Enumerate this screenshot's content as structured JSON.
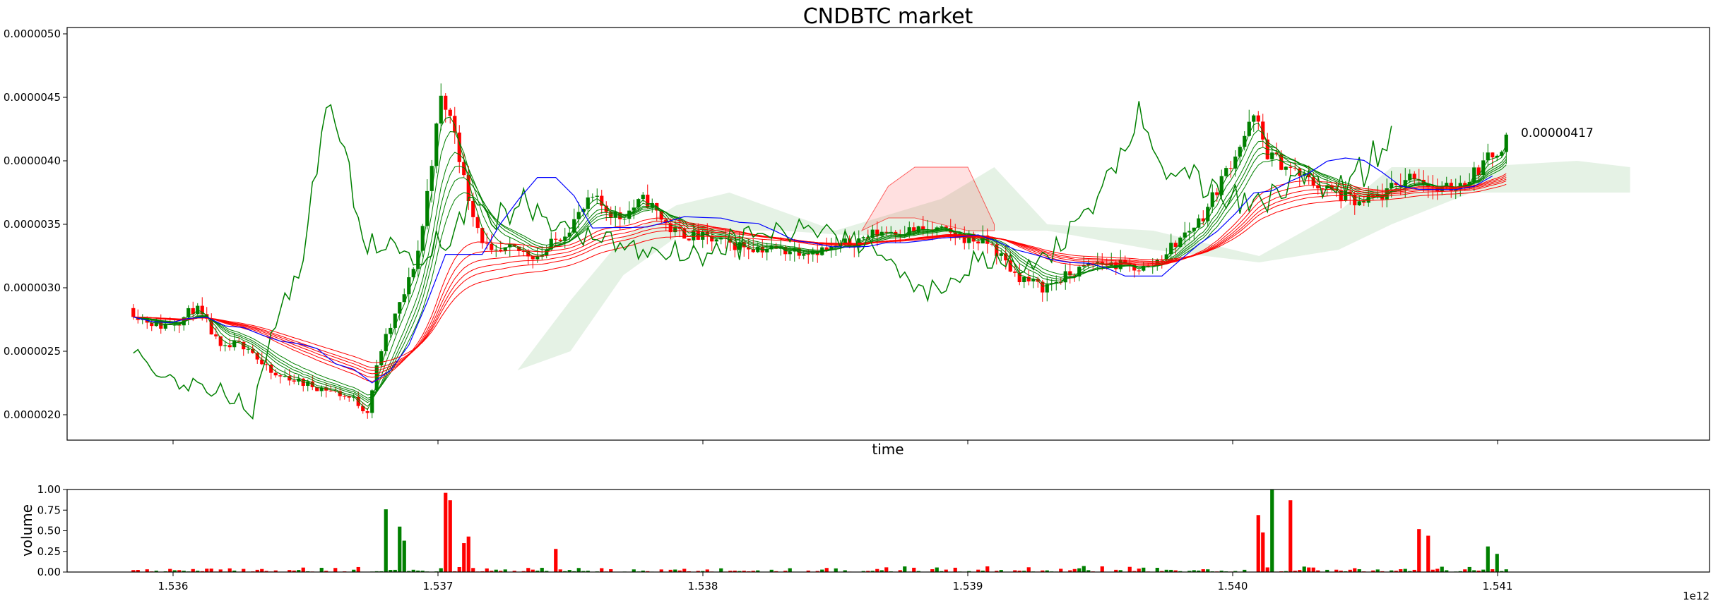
{
  "chart_data": [
    {
      "type": "candlestick",
      "title": "CNDBTC market",
      "xlabel": "time",
      "ylabel": "",
      "xlim": [
        1535600000000.0,
        1541800000000.0
      ],
      "ylim": [
        1.8e-06,
        5.05e-06
      ],
      "yticks": [
        {
          "value": 2e-06,
          "label": "0.0000020"
        },
        {
          "value": 2.5e-06,
          "label": "0.0000025"
        },
        {
          "value": 3e-06,
          "label": "0.0000030"
        },
        {
          "value": 3.5e-06,
          "label": "0.0000035"
        },
        {
          "value": 4e-06,
          "label": "0.0000040"
        },
        {
          "value": 4.5e-06,
          "label": "0.0000045"
        },
        {
          "value": 5e-06,
          "label": "0.0000050"
        }
      ],
      "annotation": {
        "x": 1541050000000.0,
        "y": 4.17e-06,
        "text": "0.00000417"
      },
      "grid": false,
      "price_close_path": [
        [
          1535850000000.0,
          2.84e-06
        ],
        [
          1535900000000.0,
          2.76e-06
        ],
        [
          1535970000000.0,
          2.7e-06
        ],
        [
          1536050000000.0,
          2.75e-06
        ],
        [
          1536100000000.0,
          2.85e-06
        ],
        [
          1536150000000.0,
          2.7e-06
        ],
        [
          1536200000000.0,
          2.5e-06
        ],
        [
          1536250000000.0,
          2.55e-06
        ],
        [
          1536300000000.0,
          2.55e-06
        ],
        [
          1536350000000.0,
          2.4e-06
        ],
        [
          1536400000000.0,
          2.3e-06
        ],
        [
          1536450000000.0,
          2.3e-06
        ],
        [
          1536500000000.0,
          2.25e-06
        ],
        [
          1536600000000.0,
          2.2e-06
        ],
        [
          1536700000000.0,
          2.12e-06
        ],
        [
          1536750000000.0,
          2.02e-06
        ],
        [
          1536800000000.0,
          2.5e-06
        ],
        [
          1536850000000.0,
          2.75e-06
        ],
        [
          1536900000000.0,
          3e-06
        ],
        [
          1536950000000.0,
          3.35e-06
        ],
        [
          1537000000000.0,
          4.1e-06
        ],
        [
          1537030000000.0,
          4.5e-06
        ],
        [
          1537080000000.0,
          4.25e-06
        ],
        [
          1537120000000.0,
          3.8e-06
        ],
        [
          1537180000000.0,
          3.4e-06
        ],
        [
          1537220000000.0,
          3.25e-06
        ],
        [
          1537300000000.0,
          3.3e-06
        ],
        [
          1537400000000.0,
          3.25e-06
        ],
        [
          1537500000000.0,
          3.45e-06
        ],
        [
          1537600000000.0,
          3.7e-06
        ],
        [
          1537700000000.0,
          3.55e-06
        ],
        [
          1537800000000.0,
          3.7e-06
        ],
        [
          1537900000000.0,
          3.45e-06
        ],
        [
          1538000000000.0,
          3.4e-06
        ],
        [
          1538100000000.0,
          3.35e-06
        ],
        [
          1538300000000.0,
          3.3e-06
        ],
        [
          1538500000000.0,
          3.3e-06
        ],
        [
          1538700000000.0,
          3.45e-06
        ],
        [
          1538900000000.0,
          3.45e-06
        ],
        [
          1539100000000.0,
          3.35e-06
        ],
        [
          1539200000000.0,
          3.1e-06
        ],
        [
          1539300000000.0,
          3e-06
        ],
        [
          1539500000000.0,
          3.2e-06
        ],
        [
          1539700000000.0,
          3.15e-06
        ],
        [
          1539900000000.0,
          3.55e-06
        ],
        [
          1540000000000.0,
          3.95e-06
        ],
        [
          1540100000000.0,
          4.35e-06
        ],
        [
          1540150000000.0,
          4.05e-06
        ],
        [
          1540300000000.0,
          3.85e-06
        ],
        [
          1540400000000.0,
          3.75e-06
        ],
        [
          1540500000000.0,
          3.65e-06
        ],
        [
          1540600000000.0,
          3.75e-06
        ],
        [
          1540700000000.0,
          3.9e-06
        ],
        [
          1540800000000.0,
          3.75e-06
        ],
        [
          1540900000000.0,
          3.85e-06
        ],
        [
          1541000000000.0,
          4.05e-06
        ],
        [
          1541050000000.0,
          4.17e-06
        ]
      ]
    },
    {
      "type": "bar",
      "ylabel": "volume",
      "xlabel": "",
      "xlim": [
        1535600000000.0,
        1541800000000.0
      ],
      "ylim": [
        0,
        1.0
      ],
      "yticks": [
        {
          "value": 0,
          "label": "0.00"
        },
        {
          "value": 0.25,
          "label": "0.25"
        },
        {
          "value": 0.5,
          "label": "0.50"
        },
        {
          "value": 0.75,
          "label": "0.75"
        },
        {
          "value": 1.0,
          "label": "1.00"
        }
      ],
      "xticks": [
        {
          "value": 1536000000000.0,
          "label": "1.536"
        },
        {
          "value": 1537000000000.0,
          "label": "1.537"
        },
        {
          "value": 1538000000000.0,
          "label": "1.538"
        },
        {
          "value": 1539000000000.0,
          "label": "1.539"
        },
        {
          "value": 1540000000000.0,
          "label": "1.540"
        },
        {
          "value": 1541000000000.0,
          "label": "1.541"
        }
      ],
      "offset_label": "1e12",
      "peaks": [
        [
          1536810000000.0,
          0.76
        ],
        [
          1536850000000.0,
          0.55
        ],
        [
          1536880000000.0,
          0.38
        ],
        [
          1537030000000.0,
          0.96
        ],
        [
          1537050000000.0,
          0.87
        ],
        [
          1537100000000.0,
          0.35
        ],
        [
          1537120000000.0,
          0.43
        ],
        [
          1537450000000.0,
          0.28
        ],
        [
          1540100000000.0,
          0.69
        ],
        [
          1540110000000.0,
          0.48
        ],
        [
          1540150000000.0,
          1.0
        ],
        [
          1540220000000.0,
          0.87
        ],
        [
          1540700000000.0,
          0.52
        ],
        [
          1540740000000.0,
          0.44
        ],
        [
          1540970000000.0,
          0.31
        ],
        [
          1541000000000.0,
          0.22
        ]
      ],
      "colors": {
        "up": "#008000",
        "down": "#ff0000"
      }
    }
  ]
}
